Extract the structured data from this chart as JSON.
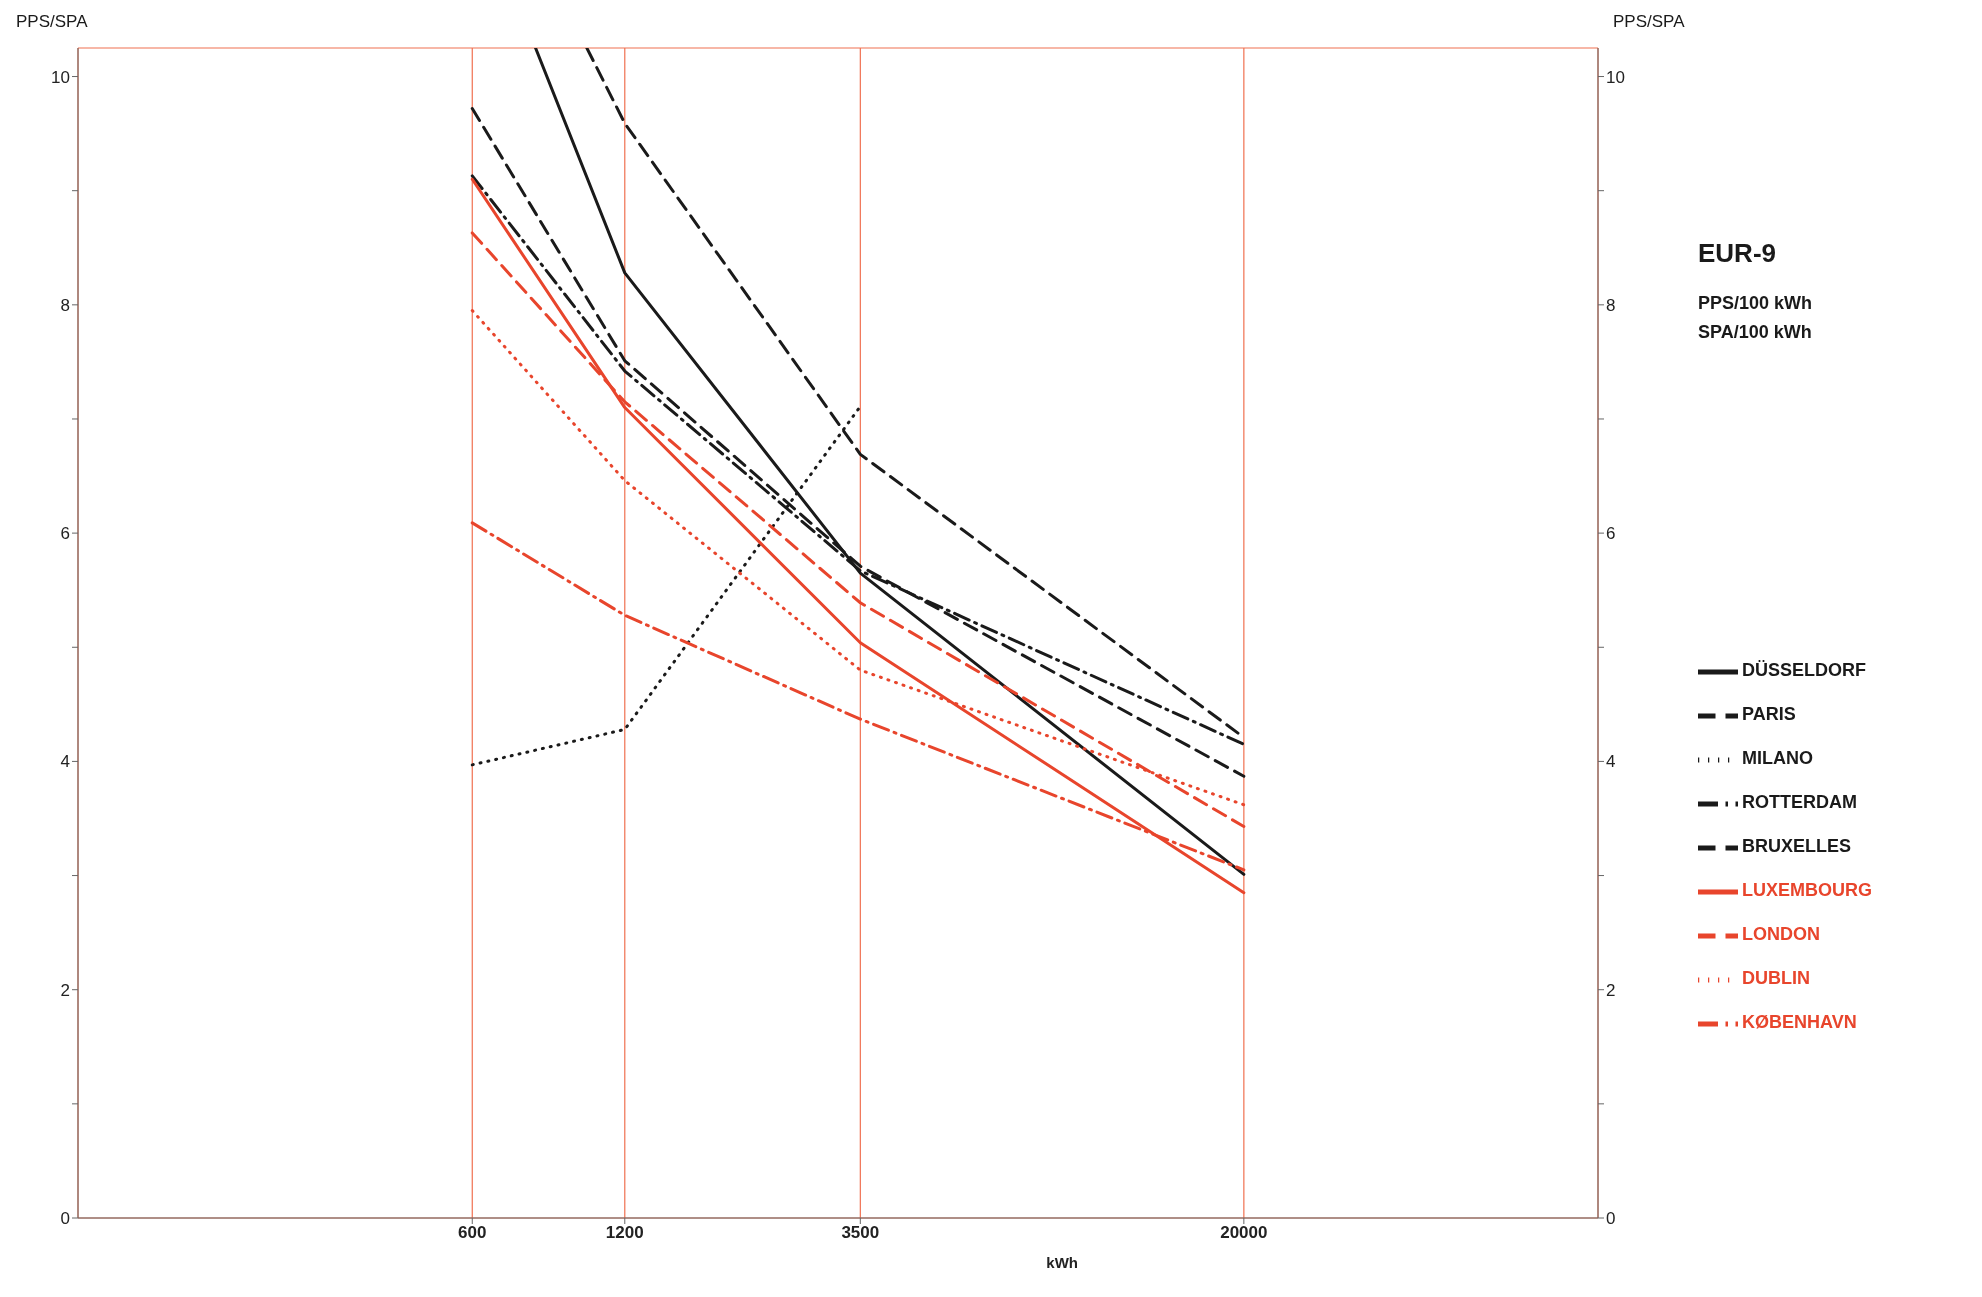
{
  "chart_data": {
    "type": "line",
    "title": "EUR-9",
    "subtitle": "PPS/100 kWh\nSPA/100 kWh",
    "xlabel": "kWh",
    "ylabel": "PPS/SPA",
    "y2label": "PPS/SPA",
    "log": "x",
    "grid": true,
    "legend": "right",
    "marker": "none",
    "xlim": [
      100,
      100000
    ],
    "xticks": [
      600,
      1200,
      3500,
      20000
    ],
    "ylim": [
      0,
      10.25
    ],
    "yticks": [
      0,
      {
        "value": 1,
        "label": null
      },
      2,
      {
        "value": 3,
        "label": null
      },
      4,
      {
        "value": 5,
        "label": null
      },
      6,
      {
        "value": 7,
        "label": null
      },
      8,
      {
        "value": 9,
        "label": null
      },
      10
    ],
    "y2lim": [
      0,
      10.25
    ],
    "y2ticks": [
      0,
      {
        "value": 1,
        "label": null
      },
      2,
      {
        "value": 3,
        "label": null
      },
      4,
      {
        "value": 5,
        "label": null
      },
      6,
      {
        "value": 7,
        "label": null
      },
      8,
      {
        "value": 9,
        "label": null
      },
      10
    ],
    "series": [
      {
        "name": "DÜSSELDORF",
        "color": "#1a1a1a",
        "line_style": "solid",
        "x": [
          800,
          1200,
          3500,
          20000
        ],
        "values": [
          10.25,
          8.28,
          5.65,
          3.01
        ]
      },
      {
        "name": "PARIS",
        "color": "#1a1a1a",
        "line_style": "dashed",
        "x": [
          1010,
          1200,
          3500,
          20000
        ],
        "values": [
          10.25,
          9.59,
          6.69,
          4.21
        ]
      },
      {
        "name": "MILANO",
        "color": "#1a1a1a",
        "line_style": "dotted",
        "x": [
          600,
          1200,
          3500
        ],
        "values": [
          3.97,
          4.28,
          7.11
        ]
      },
      {
        "name": "ROTTERDAM",
        "color": "#1a1a1a",
        "line_style": "dashdot",
        "x": [
          600,
          1200,
          3500,
          20000
        ],
        "values": [
          9.13,
          7.42,
          5.67,
          4.15
        ]
      },
      {
        "name": "BRUXELLES",
        "color": "#1a1a1a",
        "line_style": "dashed",
        "x": [
          600,
          1200,
          3500,
          20000
        ],
        "values": [
          9.72,
          7.51,
          5.71,
          3.87
        ]
      },
      {
        "name": "LUXEMBOURG",
        "color": "#e8452c",
        "line_style": "solid",
        "x": [
          600,
          1200,
          3500,
          20000
        ],
        "values": [
          9.1,
          7.1,
          5.04,
          2.85
        ]
      },
      {
        "name": "LONDON",
        "color": "#e8452c",
        "line_style": "dashed",
        "x": [
          600,
          1200,
          3500,
          20000
        ],
        "values": [
          8.63,
          7.15,
          5.39,
          3.43
        ]
      },
      {
        "name": "DUBLIN",
        "color": "#e8452c",
        "line_style": "dotted",
        "x": [
          600,
          1200,
          3500,
          20000
        ],
        "values": [
          7.95,
          6.46,
          4.8,
          3.62
        ]
      },
      {
        "name": "KØBENHAVN",
        "color": "#e8452c",
        "line_style": "dashdot",
        "x": [
          600,
          1200,
          3500,
          20000
        ],
        "values": [
          6.09,
          5.28,
          4.37,
          3.05
        ]
      }
    ]
  }
}
